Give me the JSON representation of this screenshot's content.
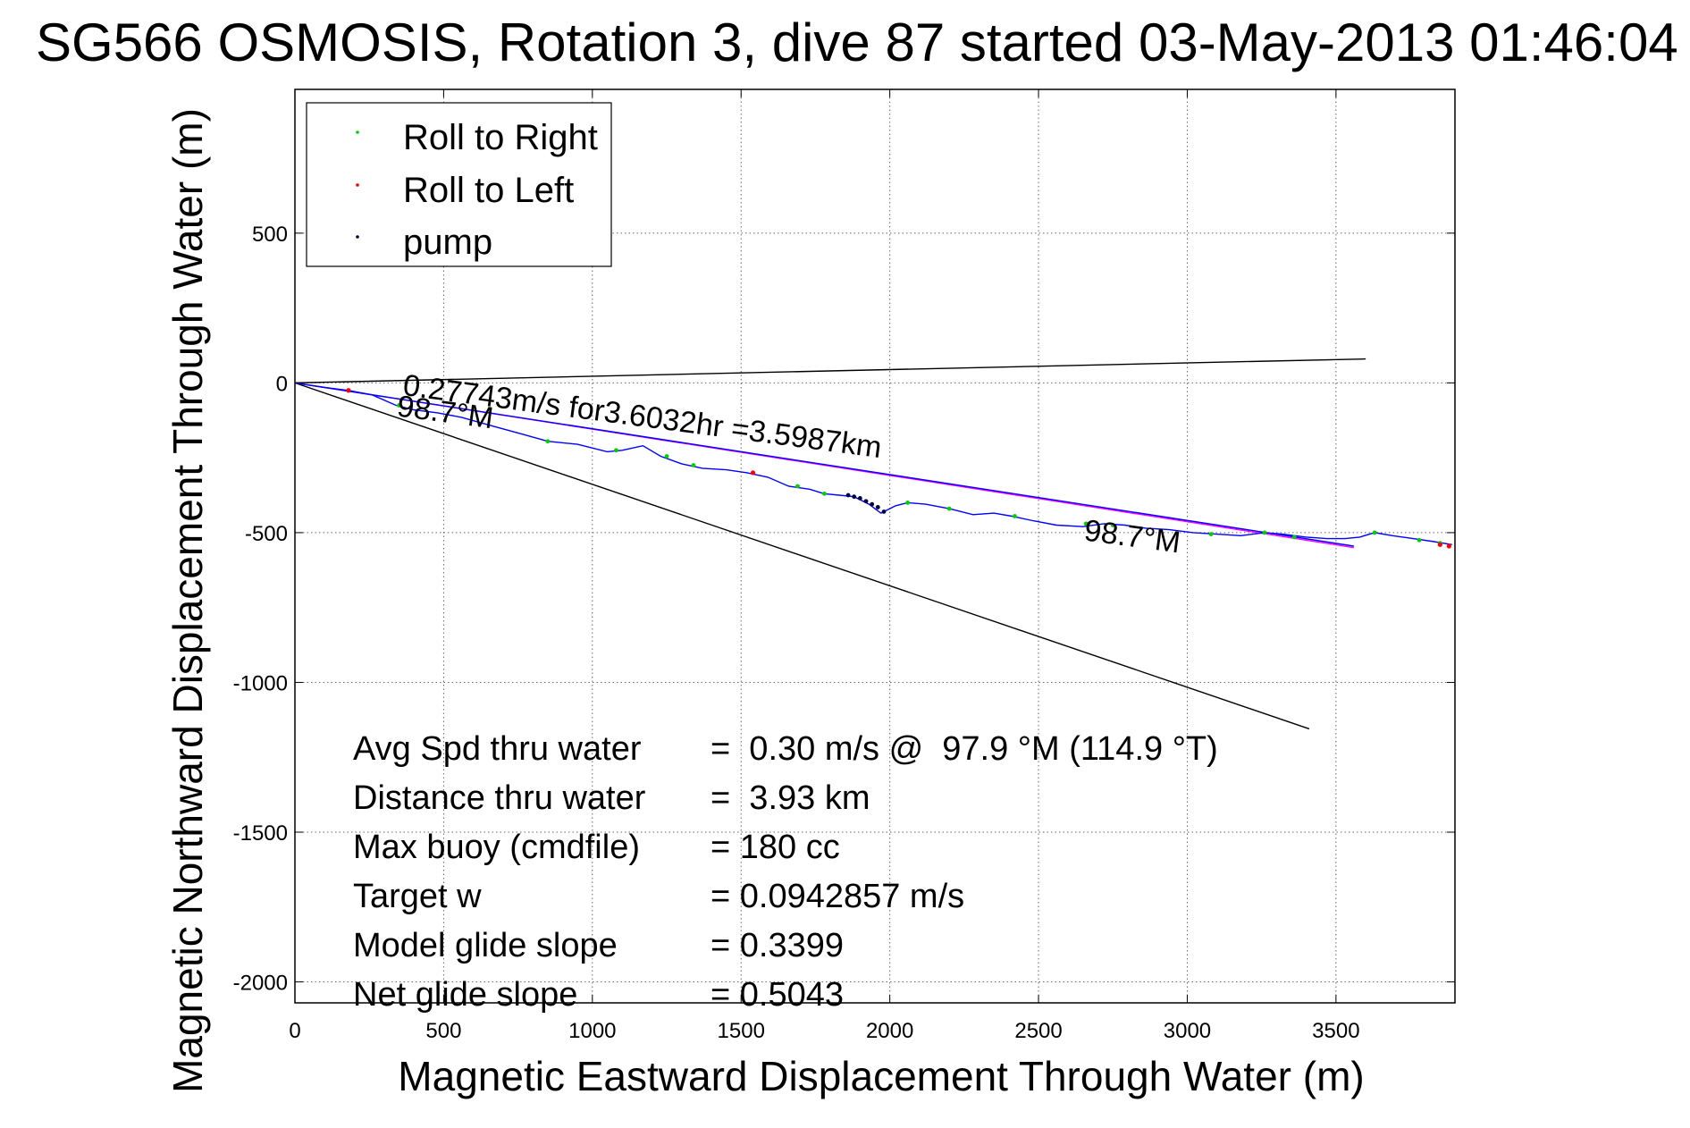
{
  "chart_data": {
    "type": "line",
    "title": "SG566 OSMOSIS, Rotation 3, dive 87 started 03-May-2013 01:46:04",
    "xlabel": "Magnetic Eastward Displacement Through Water (m)",
    "ylabel": "Magnetic Northward Displacement Through Water (m)",
    "xlim": [
      0,
      3900
    ],
    "ylim": [
      -2070,
      980
    ],
    "xticks": [
      0,
      500,
      1000,
      1500,
      2000,
      2500,
      3000,
      3500
    ],
    "yticks": [
      -2000,
      -1500,
      -1000,
      -500,
      0,
      500
    ],
    "grid": true,
    "legend_position": "top-left",
    "legend": [
      {
        "label": "Roll to Right",
        "color": "#00d000"
      },
      {
        "label": "Roll to Left",
        "color": "#ff0000"
      },
      {
        "label": "pump",
        "color": "#000040"
      }
    ],
    "track": {
      "color": "#0000ff",
      "x": [
        0,
        100,
        180,
        260,
        340,
        400,
        480,
        560,
        650,
        760,
        850,
        950,
        1050,
        1100,
        1170,
        1230,
        1300,
        1370,
        1450,
        1520,
        1590,
        1660,
        1730,
        1780,
        1830,
        1880,
        1930,
        1970,
        1990,
        2020,
        2060,
        2120,
        2200,
        2280,
        2350,
        2410,
        2480,
        2560,
        2650,
        2720,
        2790,
        2860,
        2940,
        3020,
        3100,
        3180,
        3260,
        3320,
        3400,
        3470,
        3530,
        3580,
        3630,
        3690,
        3760,
        3830,
        3890
      ],
      "y": [
        0,
        -15,
        -25,
        -40,
        -75,
        -90,
        -100,
        -115,
        -140,
        -170,
        -195,
        -205,
        -230,
        -225,
        -210,
        -245,
        -270,
        -285,
        -290,
        -300,
        -315,
        -345,
        -355,
        -370,
        -375,
        -380,
        -405,
        -435,
        -425,
        -410,
        -400,
        -405,
        -420,
        -440,
        -435,
        -445,
        -460,
        -475,
        -480,
        -470,
        -475,
        -485,
        -490,
        -500,
        -505,
        -510,
        -500,
        -505,
        -515,
        -520,
        -520,
        -515,
        -500,
        -510,
        -520,
        -530,
        -540
      ]
    },
    "roll_right_points": {
      "x": [
        350,
        850,
        1080,
        1250,
        1340,
        1690,
        1780,
        2060,
        2200,
        2420,
        2660,
        2750,
        3080,
        3260,
        3360,
        3630,
        3780,
        3850
      ],
      "y": [
        -75,
        -195,
        -225,
        -245,
        -275,
        -345,
        -370,
        -400,
        -420,
        -445,
        -470,
        -475,
        -505,
        -500,
        -515,
        -500,
        -525,
        -535
      ]
    },
    "roll_left_points": {
      "x": [
        180,
        1540,
        3850,
        3880
      ],
      "y": [
        -25,
        -300,
        -540,
        -545
      ]
    },
    "pump_points": {
      "x": [
        1860,
        1880,
        1900,
        1920,
        1940,
        1960,
        1980
      ],
      "y": [
        -375,
        -380,
        -385,
        -395,
        -405,
        -415,
        -430
      ]
    },
    "reference_lines": [
      {
        "name": "upper",
        "color": "#000000",
        "x": [
          0,
          3600
        ],
        "y": [
          0,
          80
        ]
      },
      {
        "name": "lower",
        "color": "#000000",
        "x": [
          0,
          3410
        ],
        "y": [
          0,
          -1155
        ]
      },
      {
        "name": "mean",
        "color": "#ff00ff",
        "x": [
          0,
          3560
        ],
        "y": [
          0,
          -550
        ]
      },
      {
        "name": "mean",
        "color": "#0000ff",
        "x": [
          0,
          3560
        ],
        "y": [
          0,
          -545
        ]
      }
    ],
    "annotations": {
      "rate": {
        "text": "0.27743m/s for3.6032hr =3.5987km",
        "x": 360,
        "y": -40,
        "angle": 7.5
      },
      "heading_start": {
        "text": "98.7°M",
        "x": 340,
        "y": -110,
        "angle": 7.5
      },
      "heading_end": {
        "text": "98.7°M",
        "x": 2650,
        "y": -525,
        "angle": 7.5
      }
    },
    "stats": [
      {
        "label": "Avg Spd thru water",
        "value": "=  0.30 m/s @  97.9 °M (114.9 °T)"
      },
      {
        "label": "Distance thru water",
        "value": "=  3.93 km"
      },
      {
        "label": "Max buoy (cmdfile)",
        "value": "= 180 cc"
      },
      {
        "label": "Target w",
        "value": "= 0.0942857 m/s"
      },
      {
        "label": "Model glide slope",
        "value": "= 0.3399"
      },
      {
        "label": "Net glide slope",
        "value": "= 0.5043"
      }
    ]
  }
}
